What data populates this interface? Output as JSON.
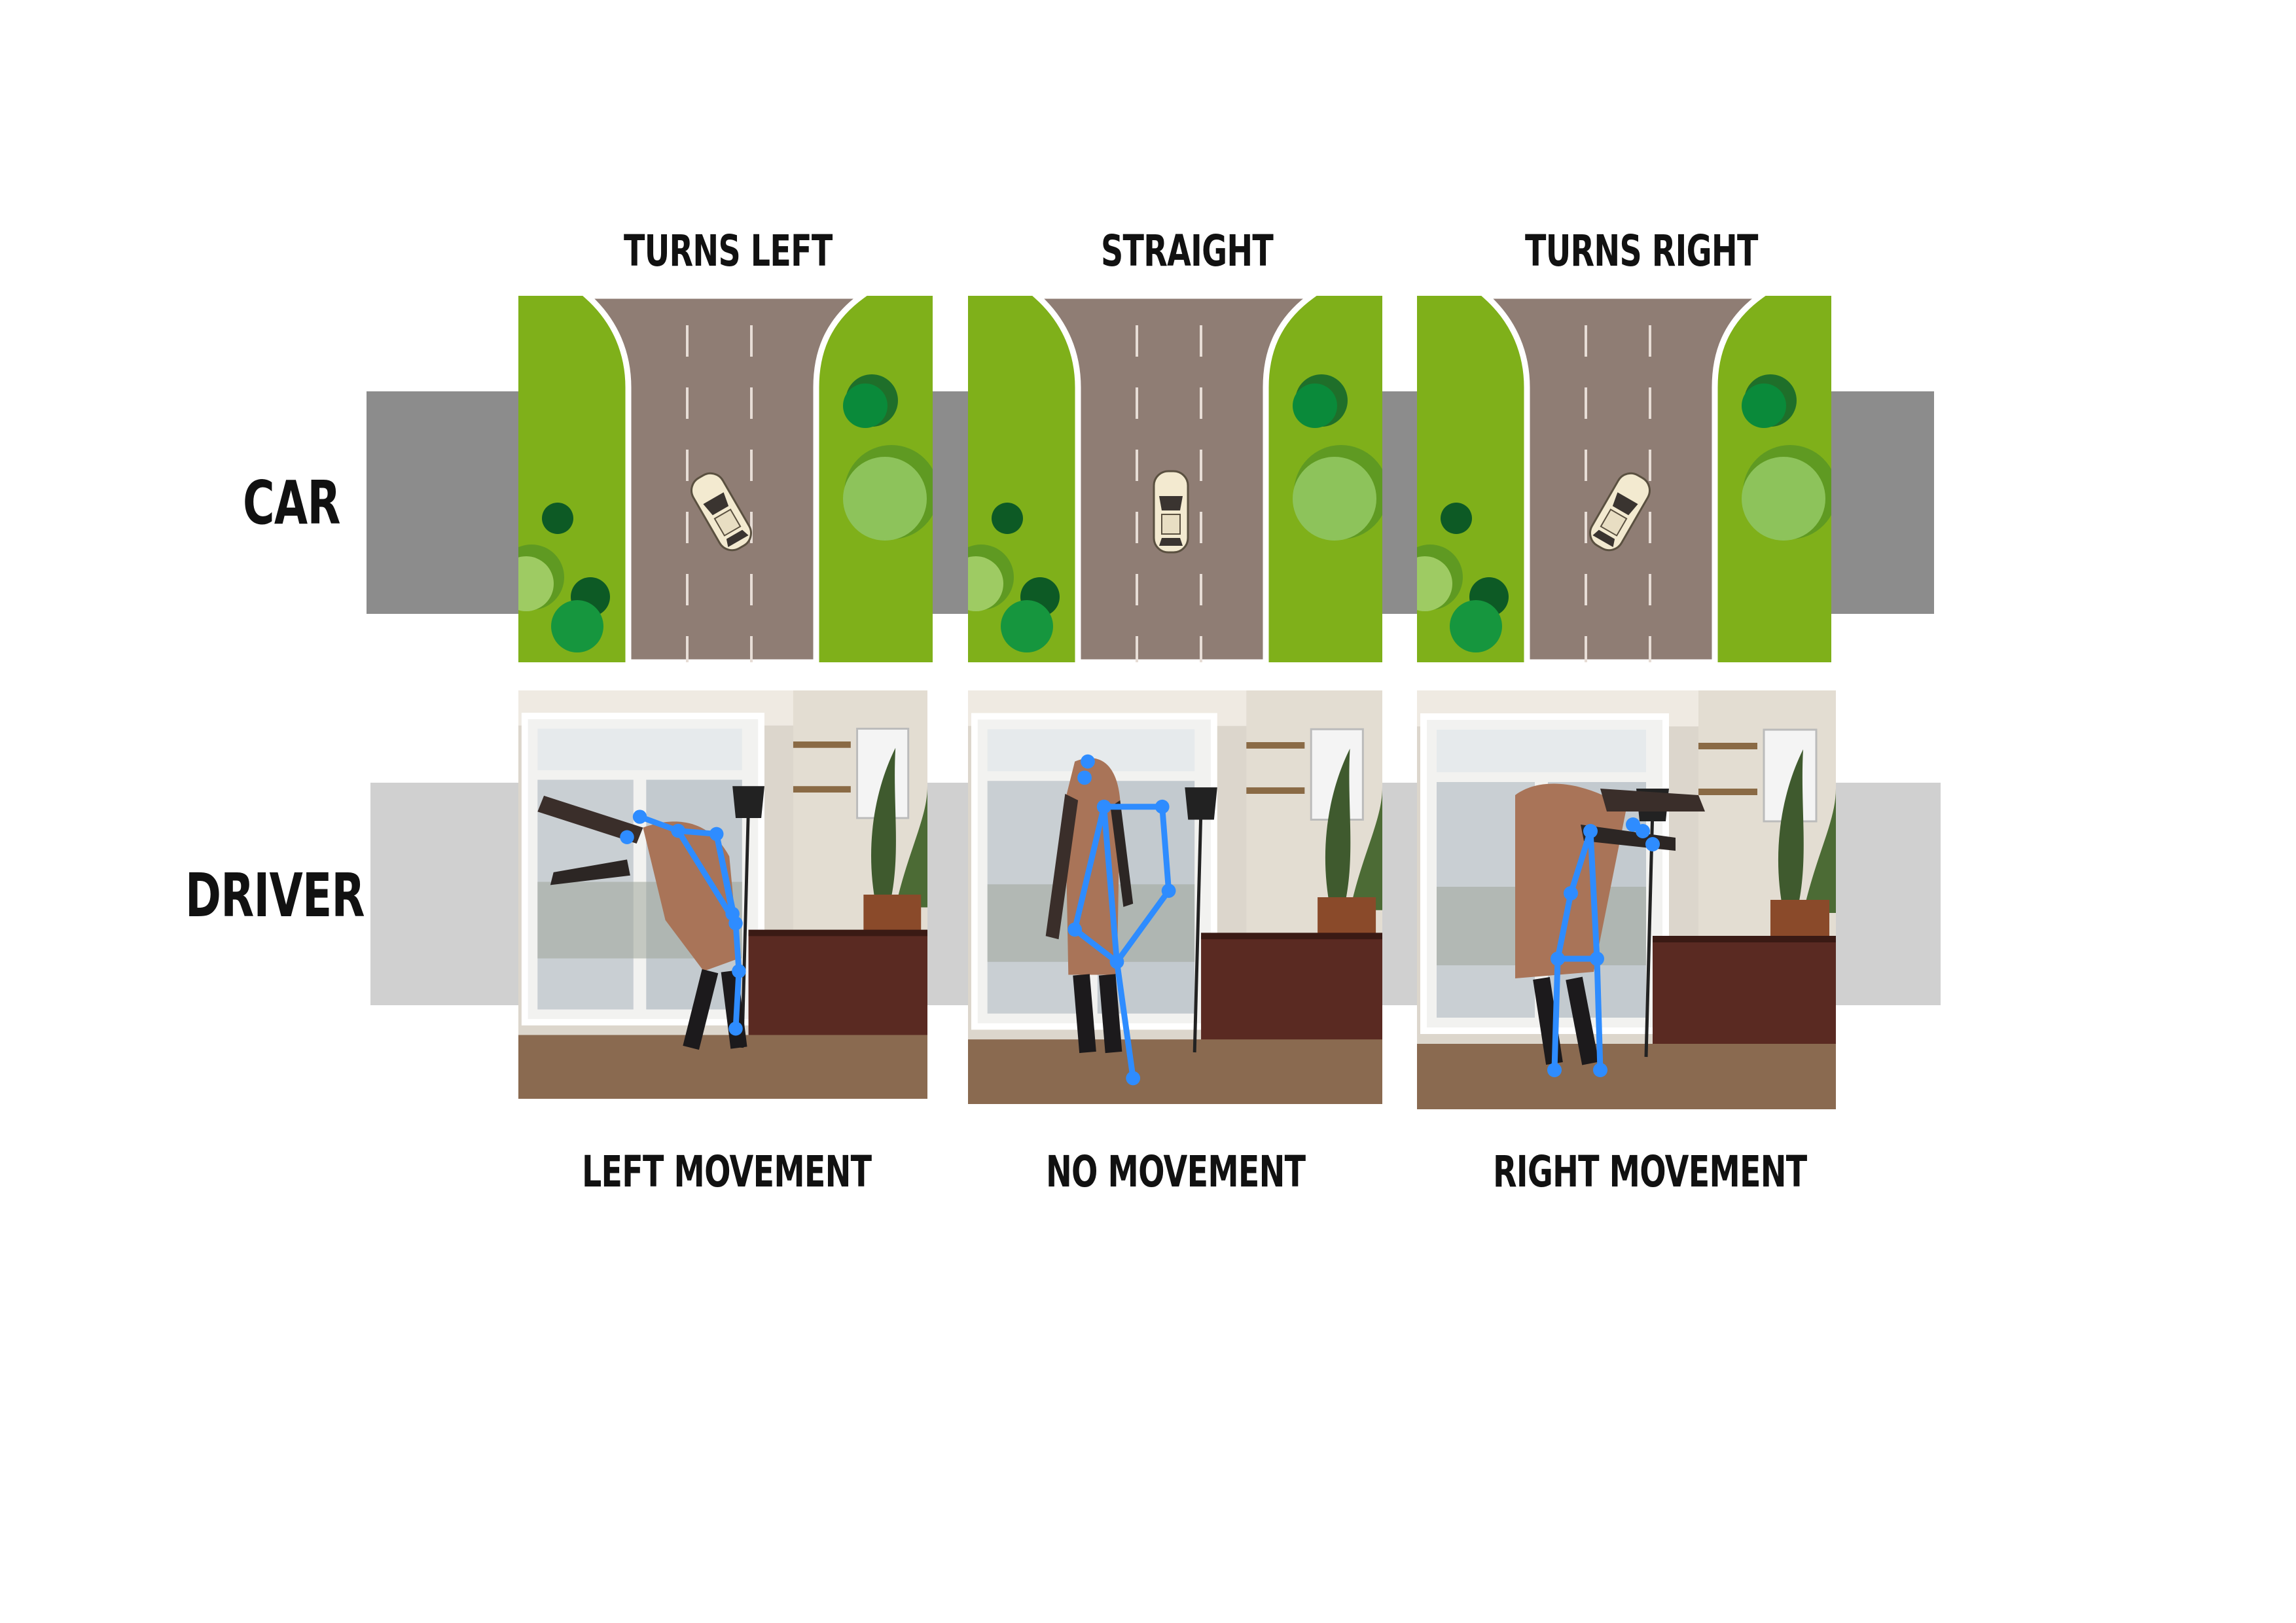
{
  "rows": {
    "car": "CAR",
    "driver": "DRIVER"
  },
  "columns": [
    {
      "title": "TURNS LEFT",
      "caption": "LEFT MOVEMENT"
    },
    {
      "title": "STRAIGHT",
      "caption": "NO MOVEMENT"
    },
    {
      "title": "TURNS RIGHT",
      "caption": "RIGHT MOVEMENT"
    }
  ],
  "colors": {
    "grass": "#7fb01a",
    "road": "#8f7d74",
    "band_dark": "#8c8c8c",
    "band_light": "#d0d0d0",
    "skeleton": "#2e8cff",
    "car_body": "#f3ead0"
  }
}
